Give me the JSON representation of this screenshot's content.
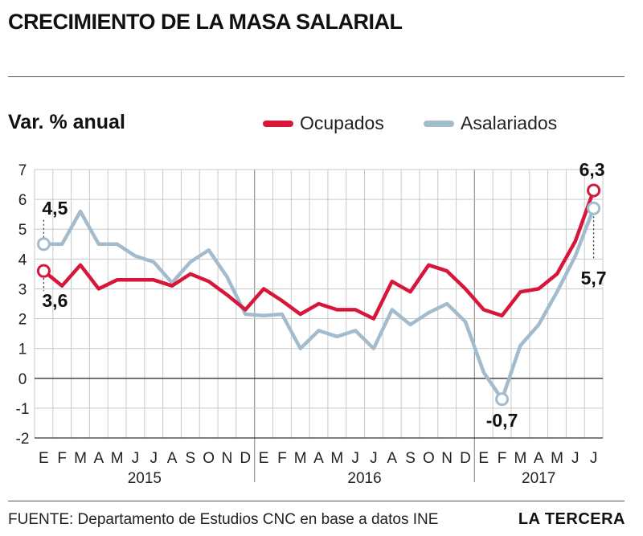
{
  "header": {
    "title": "CRECIMIENTO DE LA MASA SALARIAL"
  },
  "footer": {
    "source": "FUENTE: Departamento de Estudios CNC en base a datos INE",
    "brand": "LA TERCERA"
  },
  "colors": {
    "ocupados": "#d7173a",
    "asalariados": "#a3bccd",
    "grid": "#c9c9c9",
    "text": "#1a1a1a"
  },
  "chart_data": {
    "type": "line",
    "ylabel": "Var. % anual",
    "ylim": [
      -2,
      7
    ],
    "yticks": [
      "7",
      "6",
      "5",
      "4",
      "3",
      "2",
      "1",
      "0",
      "-1",
      "-2"
    ],
    "month_labels": [
      "E",
      "F",
      "M",
      "A",
      "M",
      "J",
      "J",
      "A",
      "S",
      "O",
      "N",
      "D",
      "E",
      "F",
      "M",
      "A",
      "M",
      "J",
      "J",
      "A",
      "S",
      "O",
      "N",
      "D",
      "E",
      "F",
      "M",
      "A",
      "M",
      "J",
      "J"
    ],
    "year_labels": [
      "2015",
      "2016",
      "2017"
    ],
    "series": [
      {
        "name": "Ocupados",
        "values": [
          3.6,
          3.1,
          3.8,
          3.0,
          3.3,
          3.3,
          3.3,
          3.1,
          3.5,
          3.25,
          2.8,
          2.3,
          3.0,
          2.6,
          2.15,
          2.5,
          2.3,
          2.3,
          2.0,
          3.25,
          2.9,
          3.8,
          3.6,
          3.0,
          2.3,
          2.1,
          2.9,
          3.0,
          3.5,
          4.6,
          6.3
        ]
      },
      {
        "name": "Asalariados",
        "values": [
          4.5,
          4.5,
          5.6,
          4.5,
          4.5,
          4.1,
          3.9,
          3.2,
          3.9,
          4.3,
          3.4,
          2.15,
          2.1,
          2.15,
          1.0,
          1.6,
          1.4,
          1.6,
          1.0,
          2.3,
          1.8,
          2.2,
          2.5,
          1.9,
          0.2,
          -0.7,
          1.1,
          1.8,
          2.9,
          4.1,
          5.7
        ]
      }
    ],
    "annotations": [
      {
        "text": "4,5",
        "series": "Asalariados",
        "index": 0
      },
      {
        "text": "3,6",
        "series": "Ocupados",
        "index": 0
      },
      {
        "text": "6,3",
        "series": "Ocupados",
        "index": 30
      },
      {
        "text": "5,7",
        "series": "Asalariados",
        "index": 30
      },
      {
        "text": "-0,7",
        "series": "Asalariados",
        "index": 25
      }
    ],
    "grid": true,
    "legend": "top"
  }
}
